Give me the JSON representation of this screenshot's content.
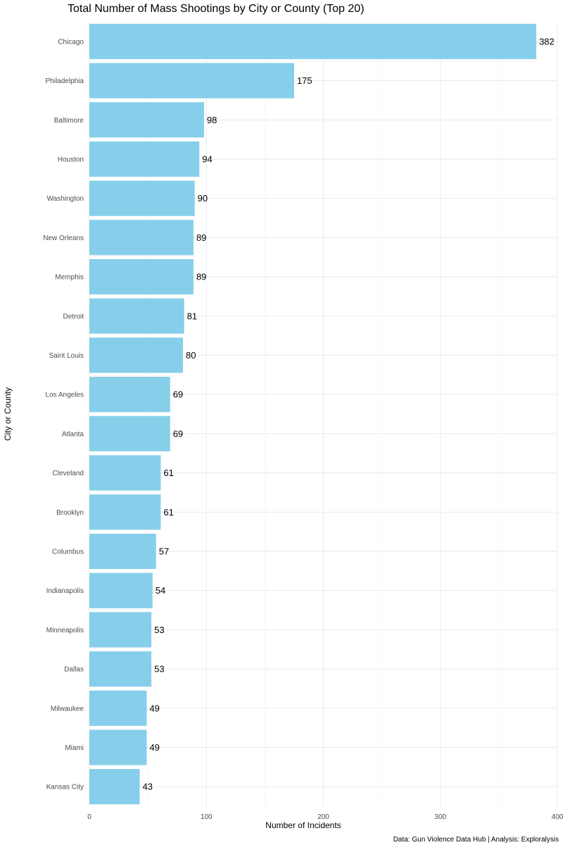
{
  "chart_data": {
    "type": "bar",
    "orientation": "horizontal",
    "title": "Total Number of Mass Shootings by City or County (Top 20)",
    "xlabel": "Number of Incidents",
    "ylabel": "City or County",
    "caption": "Data: Gun Violence Data Hub | Analysis: Exploralysis",
    "xlim": [
      0,
      400
    ],
    "xticks": [
      0,
      100,
      200,
      300,
      400
    ],
    "grid": true,
    "legend": "none",
    "bar_color": "#87ceeb",
    "categories": [
      "Chicago",
      "Philadelphia",
      "Baltimore",
      "Houston",
      "Washington",
      "New Orleans",
      "Memphis",
      "Detroit",
      "Saint Louis",
      "Los Angeles",
      "Atlanta",
      "Cleveland",
      "Brooklyn",
      "Columbus",
      "Indianapolis",
      "Minneapolis",
      "Dallas",
      "Milwaukee",
      "Miami",
      "Kansas City"
    ],
    "values": [
      382,
      175,
      98,
      94,
      90,
      89,
      89,
      81,
      80,
      69,
      69,
      61,
      61,
      57,
      54,
      53,
      53,
      49,
      49,
      43
    ]
  }
}
